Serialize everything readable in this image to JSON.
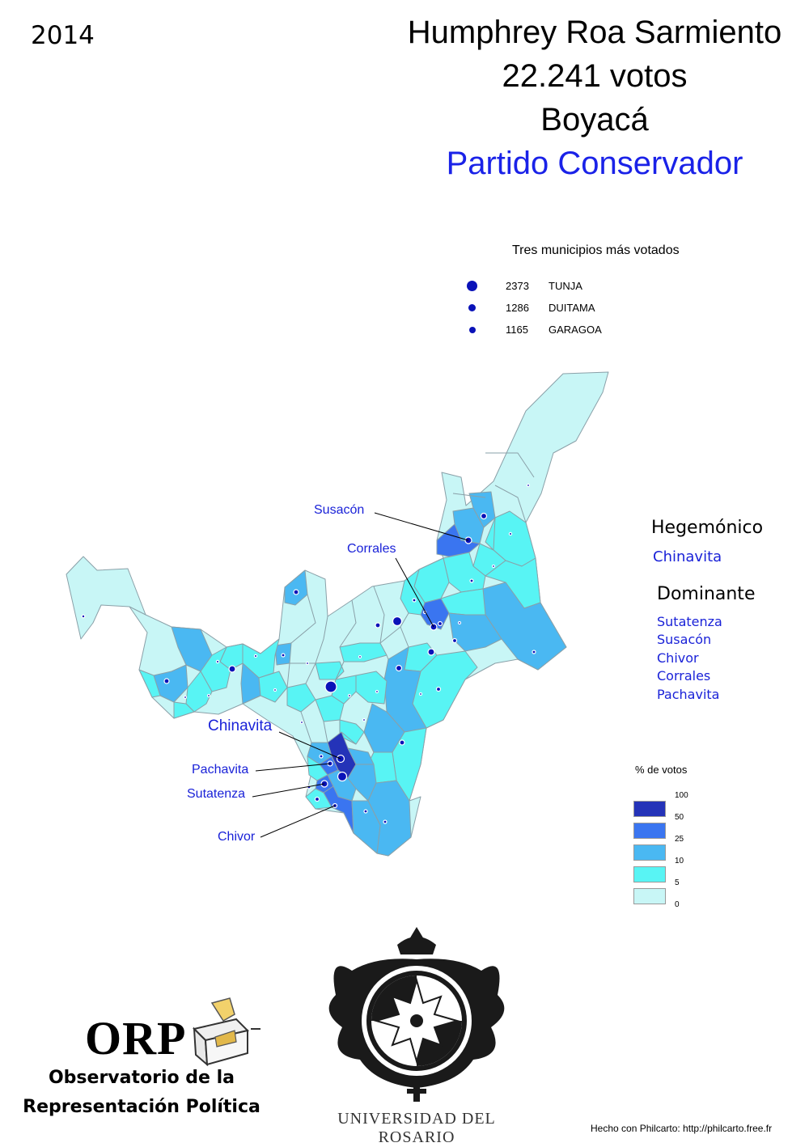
{
  "header": {
    "year": "2014",
    "candidate": "Humphrey Roa Sarmiento",
    "votes": "22.241 votos",
    "department": "Boyacá",
    "party": "Partido Conservador"
  },
  "top_municipalities": {
    "title": "Tres municipios más votados",
    "items": [
      {
        "votes": "2373",
        "name": "TUNJA"
      },
      {
        "votes": "1286",
        "name": "DUITAMA"
      },
      {
        "votes": "1165",
        "name": "GARAGOA"
      }
    ]
  },
  "categories": [
    {
      "title": "Hegemónico",
      "items": [
        "Chinavita"
      ]
    },
    {
      "title": "Dominante",
      "items": [
        "Sutatenza",
        "Susacón",
        "Chivor",
        "Corrales",
        "Pachavita"
      ]
    }
  ],
  "legend": {
    "title": "% de votos",
    "ticks": [
      "100",
      "50",
      "25",
      "10",
      "5",
      "0"
    ],
    "colors": [
      "#2433b8",
      "#3a75f0",
      "#4ab8f2",
      "#58f4f4",
      "#c8f6f6"
    ]
  },
  "map_labels": [
    "Susacón",
    "Corrales",
    "Chinavita",
    "Pachavita",
    "Sutatenza",
    "Chivor"
  ],
  "footer": {
    "orp_acronym": "ORP",
    "orp_line1": "Observatorio de la",
    "orp_line2": "Representación Política",
    "university": "UNIVERSIDAD DEL ROSARIO",
    "credit": "Hecho con Philcarto: http://philcarto.free.fr"
  },
  "colors": {
    "title_blue": "#1a22e8",
    "label_blue": "#1a22d8",
    "dot_blue": "#0a12b8",
    "border": "#8aa0a8"
  }
}
